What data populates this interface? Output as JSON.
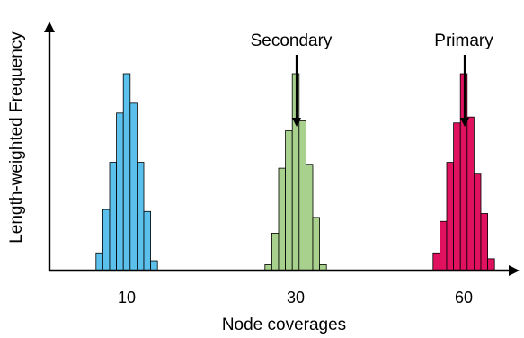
{
  "chart_data": {
    "type": "bar",
    "xlabel": "Node coverages",
    "ylabel": "Length-weighted Frequency",
    "x_ticks": [
      "10",
      "30",
      "60"
    ],
    "grid": false,
    "legend": "none",
    "series": [
      {
        "color": "#5bc0eb",
        "coverage_bins": [
          6,
          7,
          8,
          9,
          10,
          11,
          12,
          13,
          14
        ],
        "frequencies": [
          0.09,
          0.31,
          0.55,
          0.8,
          1.0,
          0.85,
          0.55,
          0.3,
          0.05
        ]
      },
      {
        "color": "#a9d18e",
        "coverage_bins": [
          26,
          27,
          28,
          29,
          30,
          31,
          32,
          33,
          34
        ],
        "frequencies": [
          0.03,
          0.19,
          0.52,
          0.71,
          1.0,
          0.76,
          0.54,
          0.27,
          0.03
        ]
      },
      {
        "color": "#e0115f",
        "coverage_bins": [
          56,
          57,
          58,
          59,
          60,
          61,
          62,
          63,
          64
        ],
        "frequencies": [
          0.09,
          0.25,
          0.55,
          0.75,
          1.0,
          0.78,
          0.49,
          0.29,
          0.06
        ]
      }
    ],
    "annotations": [
      {
        "label": "Secondary",
        "points_to": "30"
      },
      {
        "label": "Primary",
        "points_to": "60"
      }
    ]
  }
}
